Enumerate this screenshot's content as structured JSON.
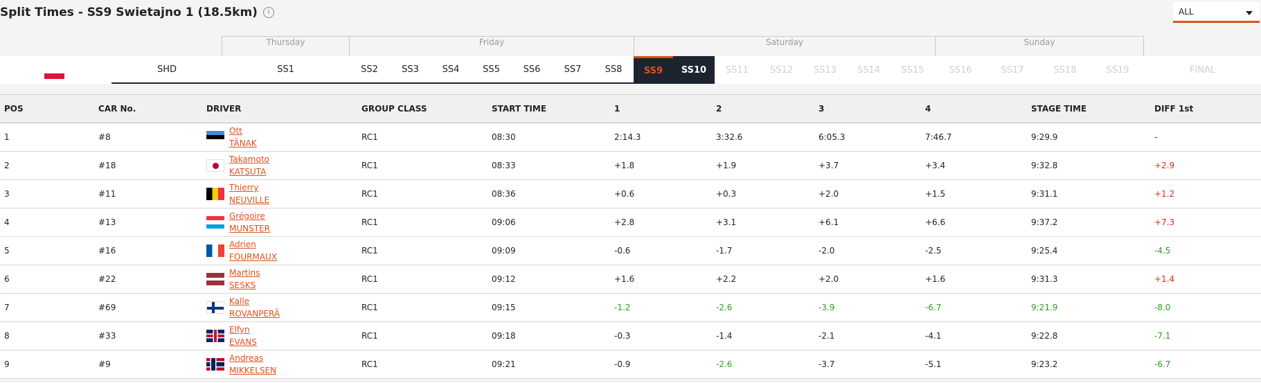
{
  "header": {
    "title": "Split Times - SS9 Swietajno 1 (18.5km)",
    "info_glyph": "i"
  },
  "filter": {
    "selected": "ALL"
  },
  "days": [
    "Thursday",
    "Friday",
    "Saturday",
    "Sunday"
  ],
  "stages": [
    "SHD",
    "SS1",
    "SS2",
    "SS3",
    "SS4",
    "SS5",
    "SS6",
    "SS7",
    "SS8",
    "SS9",
    "SS10",
    "SS11",
    "SS12",
    "SS13",
    "SS14",
    "SS15",
    "SS16",
    "SS17",
    "SS18",
    "SS19",
    "FINAL"
  ],
  "columns": [
    "POS",
    "CAR No.",
    "DRIVER",
    "GROUP CLASS",
    "START TIME",
    "1",
    "2",
    "3",
    "4",
    "STAGE TIME",
    "DIFF 1st"
  ],
  "rows": [
    {
      "pos": "1",
      "car": "#8",
      "first": "Ott",
      "last": "TÄNAK",
      "flag": "ee",
      "cls": "RC1",
      "start": "08:30",
      "s1": "2:14.3",
      "s2": "3:32.6",
      "s3": "6:05.3",
      "s4": "7:46.7",
      "stage": "9:29.9",
      "diff": "-"
    },
    {
      "pos": "2",
      "car": "#18",
      "first": "Takamoto",
      "last": "KATSUTA",
      "flag": "jp",
      "cls": "RC1",
      "start": "08:33",
      "s1": "+1.8",
      "s2": "+1.9",
      "s3": "+3.7",
      "s4": "+3.4",
      "stage": "9:32.8",
      "diff": "+2.9"
    },
    {
      "pos": "3",
      "car": "#11",
      "first": "Thierry",
      "last": "NEUVILLE",
      "flag": "be",
      "cls": "RC1",
      "start": "08:36",
      "s1": "+0.6",
      "s2": "+0.3",
      "s3": "+2.0",
      "s4": "+1.5",
      "stage": "9:31.1",
      "diff": "+1.2"
    },
    {
      "pos": "4",
      "car": "#13",
      "first": "Grégoire",
      "last": "MUNSTER",
      "flag": "lu",
      "cls": "RC1",
      "start": "09:06",
      "s1": "+2.8",
      "s2": "+3.1",
      "s3": "+6.1",
      "s4": "+6.6",
      "stage": "9:37.2",
      "diff": "+7.3"
    },
    {
      "pos": "5",
      "car": "#16",
      "first": "Adrien",
      "last": "FOURMAUX",
      "flag": "fr",
      "cls": "RC1",
      "start": "09:09",
      "s1": "-0.6",
      "s2": "-1.7",
      "s3": "-2.0",
      "s4": "-2.5",
      "stage": "9:25.4",
      "diff": "-4.5"
    },
    {
      "pos": "6",
      "car": "#22",
      "first": "Martins",
      "last": "SESKS",
      "flag": "lv",
      "cls": "RC1",
      "start": "09:12",
      "s1": "+1.6",
      "s2": "+2.2",
      "s3": "+2.0",
      "s4": "+1.6",
      "stage": "9:31.3",
      "diff": "+1.4"
    },
    {
      "pos": "7",
      "car": "#69",
      "first": "Kalle",
      "last": "ROVANPERÄ",
      "flag": "fi",
      "cls": "RC1",
      "start": "09:15",
      "s1": "-1.2",
      "s2": "-2.6",
      "s3": "-3.9",
      "s4": "-6.7",
      "stage": "9:21.9",
      "diff": "-8.0"
    },
    {
      "pos": "8",
      "car": "#33",
      "first": "Elfyn",
      "last": "EVANS",
      "flag": "gb",
      "cls": "RC1",
      "start": "09:18",
      "s1": "-0.3",
      "s2": "-1.4",
      "s3": "-2.1",
      "s4": "-4.1",
      "stage": "9:22.8",
      "diff": "-7.1"
    },
    {
      "pos": "9",
      "car": "#9",
      "first": "Andreas",
      "last": "MIKKELSEN",
      "flag": "no",
      "cls": "RC1",
      "start": "09:21",
      "s1": "-0.9",
      "s2": "-2.6",
      "s3": "-3.7",
      "s4": "-5.1",
      "stage": "9:23.2",
      "diff": "-6.7"
    }
  ],
  "green_cells": {
    "7": [
      "s1",
      "s2",
      "s3",
      "s4",
      "stage",
      "diff"
    ],
    "9": [
      "s2"
    ],
    "5": [
      "diff"
    ],
    "8": [
      "diff"
    ]
  },
  "colors": {
    "accent": "#e0501c",
    "dark": "#1d2430",
    "negative": "#2f9a26",
    "positive": "#e0271c"
  }
}
